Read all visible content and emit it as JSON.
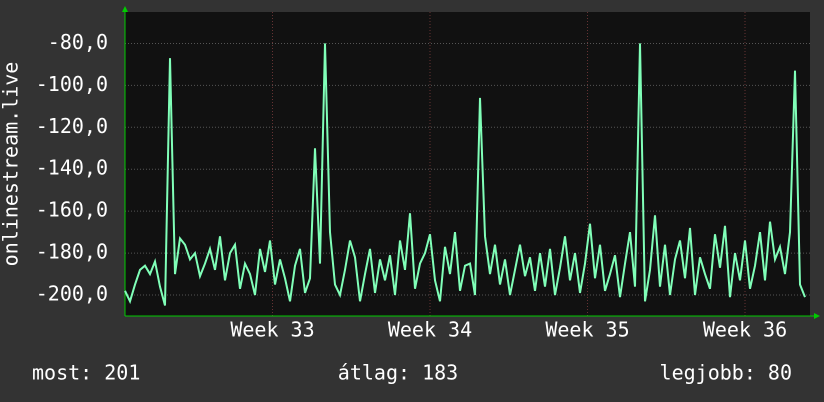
{
  "chart_data": {
    "type": "line",
    "y_label": "onlinestream.live",
    "x": [
      0,
      1,
      2,
      3,
      4,
      5,
      6,
      7,
      8,
      9,
      10,
      11,
      12,
      13,
      14,
      15,
      16,
      17,
      18,
      19,
      20,
      21,
      22,
      23,
      24,
      25,
      26,
      27,
      28,
      29,
      30,
      31,
      32,
      33,
      34,
      35,
      36,
      37,
      38,
      39,
      40,
      41,
      42,
      43,
      44,
      45,
      46,
      47,
      48,
      49,
      50,
      51,
      52,
      53,
      54,
      55,
      56,
      57,
      58,
      59,
      60,
      61,
      62,
      63,
      64,
      65,
      66,
      67,
      68,
      69,
      70,
      71,
      72,
      73,
      74,
      75,
      76,
      77,
      78,
      79,
      80,
      81,
      82,
      83,
      84,
      85,
      86,
      87,
      88,
      89,
      90,
      91,
      92,
      93,
      94,
      95,
      96,
      97,
      98,
      99,
      100,
      101,
      102,
      103,
      104,
      105,
      106,
      107,
      108,
      109,
      110,
      111,
      112,
      113,
      114,
      115,
      116,
      117,
      118,
      119,
      120,
      121,
      122,
      123,
      124,
      125,
      126,
      127,
      128,
      129,
      130,
      131,
      132,
      133,
      134,
      135,
      136
    ],
    "series": [
      {
        "color": "#80ffb8",
        "values": [
          -198,
          -203,
          -195,
          -188,
          -186,
          -190,
          -184,
          -196,
          -205,
          -87,
          -190,
          -173,
          -176,
          -183,
          -180,
          -191,
          -185,
          -178,
          -188,
          -172,
          -193,
          -180,
          -176,
          -197,
          -185,
          -190,
          -200,
          -178,
          -189,
          -174,
          -195,
          -183,
          -192,
          -203,
          -186,
          -178,
          -199,
          -192,
          -130,
          -185,
          -80,
          -170,
          -195,
          -200,
          -188,
          -174,
          -182,
          -203,
          -190,
          -178,
          -199,
          -183,
          -193,
          -181,
          -200,
          -174,
          -188,
          -161,
          -197,
          -185,
          -180,
          -171,
          -193,
          -203,
          -177,
          -190,
          -170,
          -198,
          -186,
          -185,
          -200,
          -106,
          -172,
          -190,
          -176,
          -195,
          -183,
          -200,
          -188,
          -176,
          -191,
          -182,
          -198,
          -180,
          -196,
          -178,
          -200,
          -187,
          -172,
          -193,
          -180,
          -199,
          -185,
          -166,
          -192,
          -176,
          -198,
          -190,
          -181,
          -201,
          -185,
          -170,
          -196,
          -80,
          -203,
          -188,
          -162,
          -196,
          -176,
          -200,
          -183,
          -174,
          -192,
          -168,
          -200,
          -182,
          -190,
          -197,
          -171,
          -187,
          -167,
          -201,
          -180,
          -193,
          -174,
          -197,
          -186,
          -170,
          -193,
          -165,
          -183,
          -177,
          -190,
          -170,
          -93,
          -195,
          -201
        ]
      }
    ],
    "xlim": [
      0,
      137
    ],
    "xticks": [
      {
        "value": 29.5,
        "label": "Week 33"
      },
      {
        "value": 61,
        "label": "Week 34"
      },
      {
        "value": 92.5,
        "label": "Week 35"
      },
      {
        "value": 124,
        "label": "Week 36"
      }
    ],
    "ylim": [
      -210,
      -65
    ],
    "yticks": [
      {
        "value": -200,
        "label": "-200,0"
      },
      {
        "value": -180,
        "label": "-180,0"
      },
      {
        "value": -160,
        "label": "-160,0"
      },
      {
        "value": -140,
        "label": "-140,0"
      },
      {
        "value": -120,
        "label": "-120,0"
      },
      {
        "value": -100,
        "label": "-100,0"
      },
      {
        "value": -80,
        "label": "-80,0"
      }
    ],
    "grid": true,
    "footer": [
      "most: 201",
      "átlag: 183",
      "legjobb: 80"
    ]
  }
}
